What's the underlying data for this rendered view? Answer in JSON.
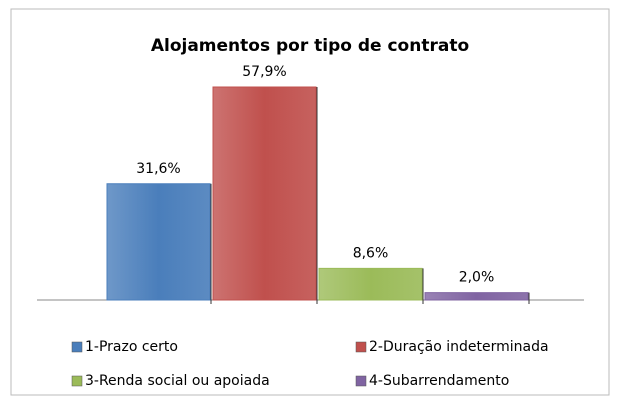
{
  "chart_data": {
    "type": "bar",
    "title": "Alojamentos por tipo de contrato",
    "series": [
      {
        "name": "1-Prazo certo",
        "color": "#4a7ebb",
        "values": [
          31.6
        ],
        "value_labels": [
          "31,6%"
        ]
      },
      {
        "name": "2-Duração indeterminada",
        "color": "#c0504d",
        "values": [
          57.9
        ],
        "value_labels": [
          "57,9%"
        ]
      },
      {
        "name": "3-Renda social ou apoiada",
        "color": "#9bbb59",
        "values": [
          8.6
        ],
        "value_labels": [
          "8,6%"
        ]
      },
      {
        "name": "4-Subarrendamento",
        "color": "#8064a2",
        "values": [
          2.0
        ],
        "value_labels": [
          "2,0%"
        ]
      }
    ]
  }
}
